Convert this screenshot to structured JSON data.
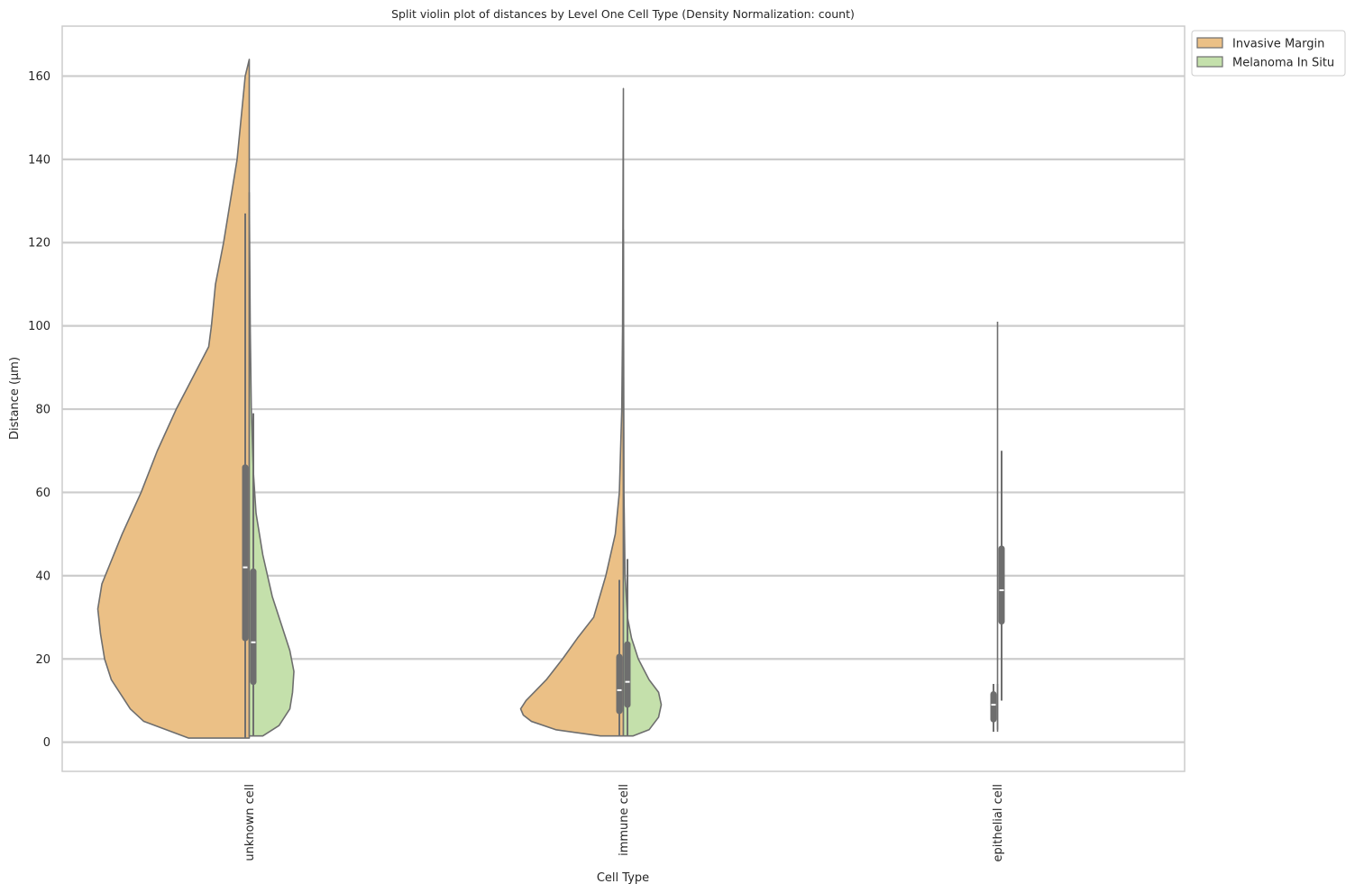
{
  "chart_data": {
    "type": "violin",
    "title": "Split violin plot of distances by Level One Cell Type (Density Normalization: count)",
    "xlabel": "Cell Type",
    "ylabel": "Distance (µm)",
    "categories": [
      "unknown cell",
      "immune cell",
      "epithelial cell"
    ],
    "ylim": [
      -7,
      172
    ],
    "yticks": [
      0,
      20,
      40,
      60,
      80,
      100,
      120,
      140,
      160
    ],
    "grid": true,
    "legend_position": "outside-top-right",
    "series": [
      {
        "name": "Invasive Margin",
        "color": "#ebc086",
        "side": "left",
        "violins": [
          {
            "category": "unknown cell",
            "min": 1,
            "max": 164,
            "density": [
              [
                1,
                0.45
              ],
              [
                5,
                0.78
              ],
              [
                8,
                0.88
              ],
              [
                11,
                0.94
              ],
              [
                15,
                1.02
              ],
              [
                20,
                1.07
              ],
              [
                26,
                1.1
              ],
              [
                32,
                1.12
              ],
              [
                38,
                1.09
              ],
              [
                42,
                1.04
              ],
              [
                50,
                0.94
              ],
              [
                60,
                0.8
              ],
              [
                70,
                0.68
              ],
              [
                80,
                0.54
              ],
              [
                85,
                0.46
              ],
              [
                95,
                0.3
              ],
              [
                100,
                0.28
              ],
              [
                110,
                0.25
              ],
              [
                120,
                0.19
              ],
              [
                140,
                0.09
              ],
              [
                160,
                0.03
              ],
              [
                164,
                0.0
              ]
            ],
            "box": {
              "whisker_low": 1,
              "q1": 25,
              "median": 42,
              "q3": 66,
              "whisker_high": 127
            }
          },
          {
            "category": "immune cell",
            "min": 1.5,
            "max": 157,
            "density": [
              [
                1.5,
                0.17
              ],
              [
                3,
                0.5
              ],
              [
                5,
                0.68
              ],
              [
                6.5,
                0.74
              ],
              [
                8,
                0.76
              ],
              [
                10,
                0.72
              ],
              [
                15,
                0.57
              ],
              [
                20,
                0.45
              ],
              [
                25,
                0.34
              ],
              [
                30,
                0.22
              ],
              [
                40,
                0.13
              ],
              [
                50,
                0.06
              ],
              [
                60,
                0.03
              ],
              [
                80,
                0.012
              ],
              [
                100,
                0.006
              ],
              [
                130,
                0.003
              ],
              [
                157,
                0.0
              ]
            ],
            "box": {
              "whisker_low": 1.5,
              "q1": 7.5,
              "median": 12.5,
              "q3": 20.5,
              "whisker_high": 39
            }
          },
          {
            "category": "epithelial cell",
            "min": 2.5,
            "max": 14,
            "density": [
              [
                2.5,
                0
              ],
              [
                14,
                0
              ]
            ],
            "box": {
              "whisker_low": 2.5,
              "q1": 5.5,
              "median": 9,
              "q3": 11.5,
              "whisker_high": 14
            }
          }
        ]
      },
      {
        "name": "Melanoma In Situ",
        "color": "#c4e0ab",
        "side": "right",
        "violins": [
          {
            "category": "unknown cell",
            "min": 1.5,
            "max": 132,
            "density": [
              [
                1.5,
                0.1
              ],
              [
                4,
                0.22
              ],
              [
                8,
                0.3
              ],
              [
                12,
                0.32
              ],
              [
                17,
                0.33
              ],
              [
                22,
                0.3
              ],
              [
                28,
                0.24
              ],
              [
                35,
                0.17
              ],
              [
                45,
                0.1
              ],
              [
                55,
                0.05
              ],
              [
                65,
                0.03
              ],
              [
                80,
                0.015
              ],
              [
                100,
                0.007
              ],
              [
                132,
                0.0
              ]
            ],
            "box": {
              "whisker_low": 1.5,
              "q1": 14.5,
              "median": 24,
              "q3": 41,
              "whisker_high": 79
            }
          },
          {
            "category": "immune cell",
            "min": 1.5,
            "max": 123,
            "density": [
              [
                1.5,
                0.07
              ],
              [
                3,
                0.19
              ],
              [
                6,
                0.26
              ],
              [
                9,
                0.28
              ],
              [
                12,
                0.26
              ],
              [
                15,
                0.19
              ],
              [
                20,
                0.11
              ],
              [
                25,
                0.06
              ],
              [
                30,
                0.03
              ],
              [
                40,
                0.012
              ],
              [
                60,
                0.004
              ],
              [
                123,
                0.0
              ]
            ],
            "box": {
              "whisker_low": 1.5,
              "q1": 9,
              "median": 14.5,
              "q3": 23.5,
              "whisker_high": 44
            }
          },
          {
            "category": "epithelial cell",
            "min": 3,
            "max": 101,
            "density": [
              [
                3,
                0
              ],
              [
                101,
                0
              ]
            ],
            "box": {
              "whisker_low": 10,
              "q1": 29,
              "median": 36.5,
              "q3": 46.5,
              "whisker_high": 70
            }
          }
        ]
      }
    ]
  }
}
